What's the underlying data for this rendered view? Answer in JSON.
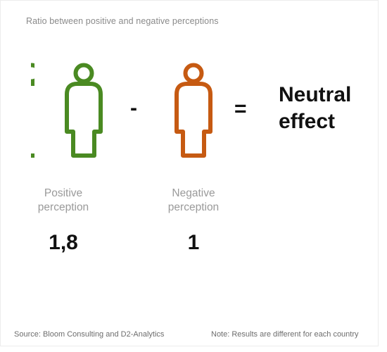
{
  "subtitle": "Ratio between positive and negative perceptions",
  "colors": {
    "positive": "#4a8a22",
    "negative": "#c65a12",
    "text": "#111111",
    "muted": "#9a9a9a"
  },
  "icons": {
    "positive": "person-outline-icon",
    "negative": "person-outline-icon"
  },
  "operators": {
    "minus": "-",
    "equals": "="
  },
  "result": {
    "line1": "Neutral",
    "line2": "effect"
  },
  "positive": {
    "label_line1": "Positive",
    "label_line2": "perception",
    "value": "1,8"
  },
  "negative": {
    "label_line1": "Negative",
    "label_line2": "perception",
    "value": "1"
  },
  "footer": {
    "source": "Source: Bloom Consulting and D2-Analytics",
    "note": "Note: Results are different for each country"
  }
}
